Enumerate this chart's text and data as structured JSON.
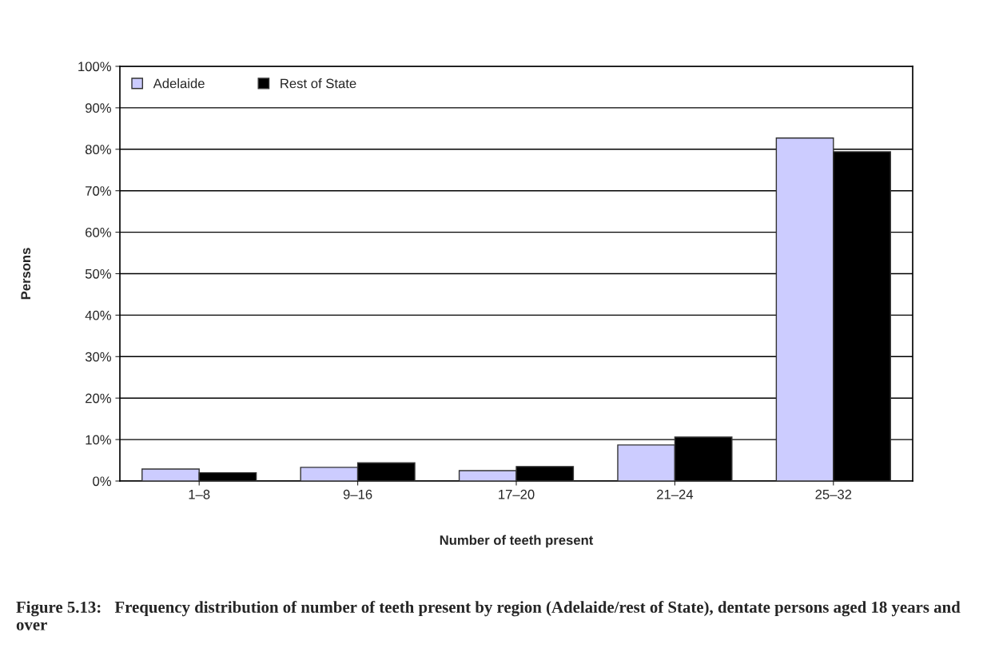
{
  "chart_data": {
    "type": "bar",
    "categories": [
      "1–8",
      "9–16",
      "17–20",
      "21–24",
      "25–32"
    ],
    "series": [
      {
        "name": "Adelaide",
        "color": "#ccccff",
        "values": [
          2.9,
          3.3,
          2.5,
          8.7,
          82.7
        ]
      },
      {
        "name": "Rest of State",
        "color": "#000000",
        "values": [
          2.0,
          4.4,
          3.5,
          10.6,
          79.4
        ]
      }
    ],
    "xlabel": "Number of teeth present",
    "ylabel": "Persons",
    "ylim": [
      0,
      100
    ],
    "yticks": [
      {
        "value": 0,
        "label": "0%"
      },
      {
        "value": 10,
        "label": "10%"
      },
      {
        "value": 20,
        "label": "20%"
      },
      {
        "value": 30,
        "label": "30%"
      },
      {
        "value": 40,
        "label": "40%"
      },
      {
        "value": 50,
        "label": "50%"
      },
      {
        "value": 60,
        "label": "60%"
      },
      {
        "value": 70,
        "label": "70%"
      },
      {
        "value": 80,
        "label": "80%"
      },
      {
        "value": 90,
        "label": "90%"
      },
      {
        "value": 100,
        "label": "100%"
      }
    ],
    "grid": "y",
    "legend": "top left",
    "annotations": [
      "Figure 5.13:\tFrequency distribution of number of teeth present by region (Adelaide/rest of State), dentate persons aged 18 years and over"
    ]
  }
}
